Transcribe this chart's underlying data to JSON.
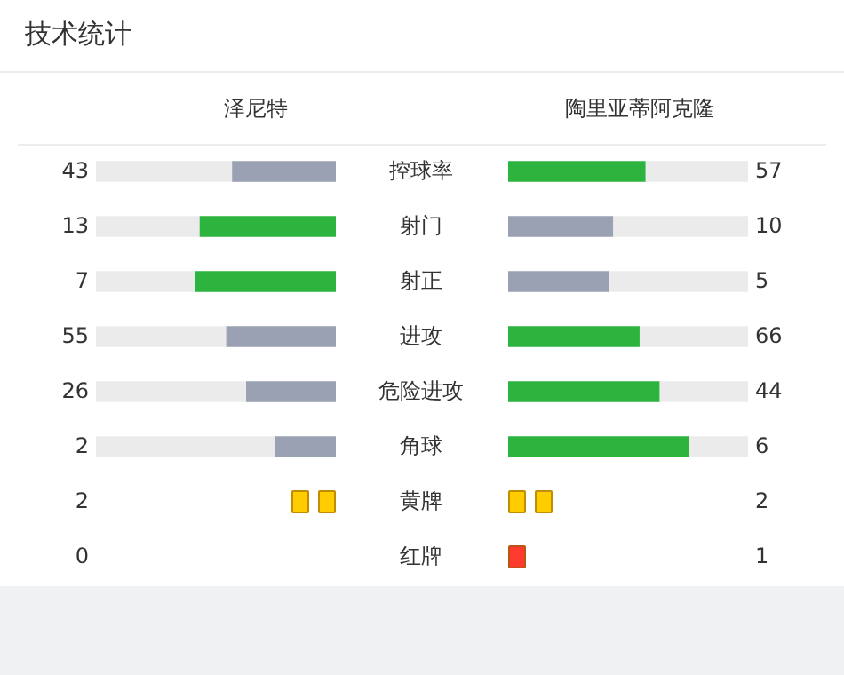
{
  "chart_data": [
    {
      "type": "other",
      "title": "技术统计",
      "categories": [
        "控球率",
        "射门",
        "射正",
        "进攻",
        "危险进攻",
        "角球"
      ],
      "data_labels": true,
      "series": [
        {
          "name": "泽尼特",
          "values": [
            43,
            13,
            7,
            55,
            26,
            2
          ],
          "colors": [
            "#9aa1b2",
            "#2db43f",
            "#2db43f",
            "#9aa1b2",
            "#9aa1b2",
            "#9aa1b2"
          ]
        },
        {
          "name": "陶里亚蒂阿克隆",
          "values": [
            57,
            10,
            5,
            66,
            44,
            6
          ],
          "colors": [
            "#2db43f",
            "#9aa1b2",
            "#9aa1b2",
            "#2db43f",
            "#2db43f",
            "#2db43f"
          ]
        }
      ]
    },
    {
      "type": "other",
      "categories": [
        "黄牌",
        "红牌"
      ],
      "data_labels": true,
      "series": [
        {
          "values": [
            2,
            0
          ],
          "colors": [
            "#ffcc00",
            null
          ]
        },
        {
          "values": [
            2,
            1
          ],
          "colors": [
            "#ffcc00",
            "#ff3b30"
          ]
        }
      ]
    }
  ]
}
